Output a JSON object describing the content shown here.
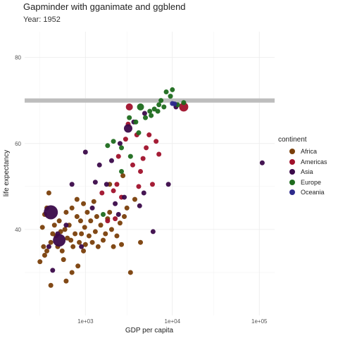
{
  "chart_data": {
    "type": "scatter",
    "title": "Gapminder with gganimate and ggblend",
    "subtitle": "Year: 1952",
    "xlabel": "GDP per capita",
    "ylabel": "life expectancy",
    "x_scale": "log10",
    "xlim": [
      200,
      150000
    ],
    "ylim": [
      20,
      86
    ],
    "x_ticks": [
      {
        "value": 1000,
        "label": "1e+03"
      },
      {
        "value": 10000,
        "label": "1e+04"
      },
      {
        "value": 100000,
        "label": "1e+05"
      }
    ],
    "y_ticks": [
      {
        "value": 40,
        "label": "40"
      },
      {
        "value": 60,
        "label": "60"
      },
      {
        "value": 80,
        "label": "80"
      }
    ],
    "grid": true,
    "reference_line": {
      "y": 70,
      "color": "#bdbdbd"
    },
    "legend": {
      "title": "continent",
      "position": "right",
      "entries": [
        "Africa",
        "Americas",
        "Asia",
        "Europe",
        "Oceania"
      ]
    },
    "colors": {
      "Africa": "#7a3f0a",
      "Americas": "#a0112b",
      "Asia": "#3b0a4a",
      "Europe": "#1e6b1e",
      "Oceania": "#2d2a8c"
    },
    "series": [
      {
        "name": "Africa",
        "points": [
          [
            300,
            32.5
          ],
          [
            320,
            40.5
          ],
          [
            340,
            43.5
          ],
          [
            360,
            45
          ],
          [
            380,
            48.5
          ],
          [
            330,
            36
          ],
          [
            340,
            34
          ],
          [
            360,
            35
          ],
          [
            400,
            37
          ],
          [
            420,
            39
          ],
          [
            440,
            41
          ],
          [
            460,
            38.5
          ],
          [
            480,
            36
          ],
          [
            500,
            42
          ],
          [
            520,
            39.5
          ],
          [
            540,
            35
          ],
          [
            560,
            33
          ],
          [
            580,
            40
          ],
          [
            600,
            44
          ],
          [
            620,
            38
          ],
          [
            650,
            41
          ],
          [
            680,
            37.5
          ],
          [
            700,
            45
          ],
          [
            720,
            36
          ],
          [
            760,
            39
          ],
          [
            800,
            43
          ],
          [
            820,
            31.5
          ],
          [
            850,
            37
          ],
          [
            880,
            42
          ],
          [
            900,
            39
          ],
          [
            950,
            35
          ],
          [
            980,
            40.5
          ],
          [
            1000,
            36.5
          ],
          [
            1050,
            44
          ],
          [
            1100,
            38.5
          ],
          [
            1150,
            42
          ],
          [
            1200,
            37
          ],
          [
            1300,
            39.5
          ],
          [
            1350,
            43
          ],
          [
            1400,
            36
          ],
          [
            1500,
            41
          ],
          [
            1600,
            37.5
          ],
          [
            1700,
            39
          ],
          [
            1800,
            42.5
          ],
          [
            1900,
            44
          ],
          [
            2000,
            40
          ],
          [
            2100,
            36
          ],
          [
            2300,
            38.5
          ],
          [
            2500,
            41.5
          ],
          [
            2800,
            43
          ],
          [
            3000,
            45
          ],
          [
            3300,
            30
          ],
          [
            3700,
            47
          ],
          [
            4300,
            37
          ],
          [
            600,
            28
          ],
          [
            700,
            30
          ],
          [
            400,
            27
          ],
          [
            800,
            47
          ],
          [
            950,
            46
          ],
          [
            1250,
            46.5
          ],
          [
            2600,
            36.5
          ],
          [
            2700,
            52.5
          ],
          [
            1900,
            50.5
          ]
        ]
      },
      {
        "name": "Americas",
        "points": [
          [
            1550,
            48.5
          ],
          [
            1800,
            42
          ],
          [
            2100,
            49
          ],
          [
            2300,
            50.5
          ],
          [
            2400,
            57
          ],
          [
            2600,
            47.5
          ],
          [
            2900,
            61
          ],
          [
            3100,
            64.5
          ],
          [
            3500,
            55
          ],
          [
            3900,
            62
          ],
          [
            4100,
            50
          ],
          [
            4300,
            53.5
          ],
          [
            4600,
            56.5
          ],
          [
            5000,
            59
          ],
          [
            5400,
            62
          ],
          [
            5900,
            50.5
          ],
          [
            6500,
            60.5
          ],
          [
            7000,
            57.5
          ],
          [
            2200,
            42.5
          ],
          [
            3200,
            68.5
          ],
          [
            13500,
            68.5
          ],
          [
            11000,
            69
          ]
        ]
      },
      {
        "name": "Asia",
        "points": [
          [
            400,
            44
          ],
          [
            420,
            30.5
          ],
          [
            500,
            37.5
          ],
          [
            700,
            50.5
          ],
          [
            900,
            36
          ],
          [
            1000,
            58
          ],
          [
            1300,
            51
          ],
          [
            1450,
            55
          ],
          [
            1750,
            50.5
          ],
          [
            2000,
            56
          ],
          [
            2200,
            46
          ],
          [
            2400,
            43.5
          ],
          [
            2800,
            47.5
          ],
          [
            3100,
            63.5
          ],
          [
            3600,
            65
          ],
          [
            4200,
            45.5
          ],
          [
            4700,
            48.5
          ],
          [
            6000,
            39.5
          ],
          [
            9000,
            50.5
          ],
          [
            108000,
            55.5
          ],
          [
            11000,
            68.5
          ],
          [
            4800,
            67
          ],
          [
            380,
            36
          ],
          [
            480,
            39
          ],
          [
            600,
            41
          ],
          [
            1200,
            45
          ],
          [
            2500,
            60
          ]
        ]
      },
      {
        "name": "Europe",
        "points": [
          [
            1600,
            43.5
          ],
          [
            1800,
            59.5
          ],
          [
            2100,
            60.5
          ],
          [
            2600,
            59
          ],
          [
            3200,
            66
          ],
          [
            3800,
            65
          ],
          [
            4300,
            68.5
          ],
          [
            4900,
            66
          ],
          [
            5500,
            67.5
          ],
          [
            6200,
            68
          ],
          [
            7000,
            69
          ],
          [
            7400,
            70
          ],
          [
            8000,
            68.5
          ],
          [
            8500,
            72
          ],
          [
            9500,
            71
          ],
          [
            10000,
            72.5
          ],
          [
            11500,
            69
          ],
          [
            13500,
            69.5
          ],
          [
            2600,
            53.5
          ],
          [
            3300,
            57
          ],
          [
            5700,
            66.5
          ],
          [
            6800,
            67.5
          ],
          [
            4100,
            62.5
          ]
        ]
      },
      {
        "name": "Oceania",
        "points": [
          [
            10000,
            69.3
          ],
          [
            10600,
            69.2
          ]
        ]
      }
    ]
  }
}
